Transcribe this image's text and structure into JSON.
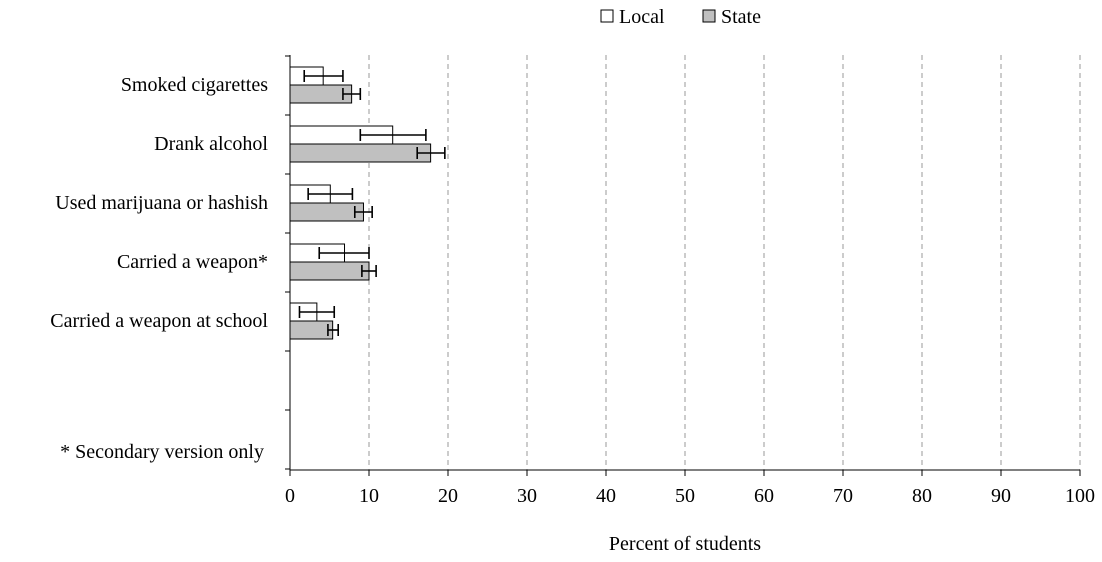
{
  "chart_data": {
    "type": "bar",
    "orientation": "horizontal",
    "categories": [
      "Smoked cigarettes",
      "Drank alcohol",
      "Used marijuana or hashish",
      "Carried a weapon*",
      "Carried a weapon at school"
    ],
    "series": [
      {
        "name": "Local",
        "color": "#ffffff",
        "values": [
          4.2,
          13.0,
          5.1,
          6.9,
          3.4
        ],
        "error_low": [
          1.8,
          8.9,
          2.3,
          3.7,
          1.2
        ],
        "error_high": [
          6.7,
          17.2,
          7.9,
          10.0,
          5.6
        ]
      },
      {
        "name": "State",
        "color": "#c0c0c0",
        "values": [
          7.8,
          17.8,
          9.3,
          10.0,
          5.4
        ],
        "error_low": [
          6.7,
          16.1,
          8.2,
          9.1,
          4.8
        ],
        "error_high": [
          8.9,
          19.6,
          10.4,
          10.9,
          6.1
        ]
      }
    ],
    "xlabel": "Percent of students",
    "xlim": [
      0,
      100
    ],
    "xticks": [
      0,
      10,
      20,
      30,
      40,
      50,
      60,
      70,
      80,
      90,
      100
    ],
    "grid": "vertical dashed",
    "legend_position": "top-right",
    "note": "* Secondary version only"
  }
}
